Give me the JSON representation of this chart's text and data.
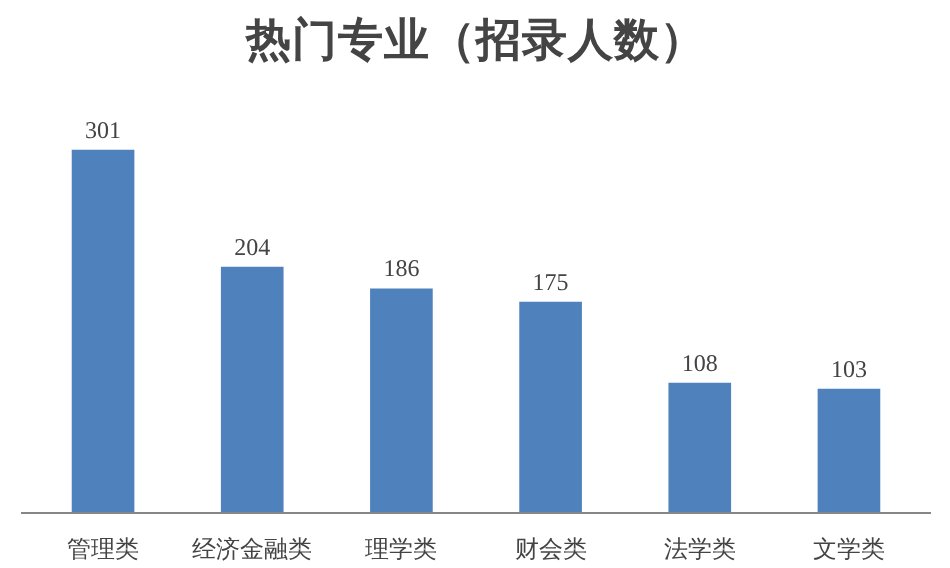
{
  "chart_data": {
    "type": "bar",
    "title": "热门专业（招录人数）",
    "categories": [
      "管理类",
      "经济金融类",
      "理学类",
      "财会类",
      "法学类",
      "文学类"
    ],
    "values": [
      301,
      204,
      186,
      175,
      108,
      103
    ],
    "color": "#4f81bd",
    "data_labels": true,
    "grid": false
  }
}
